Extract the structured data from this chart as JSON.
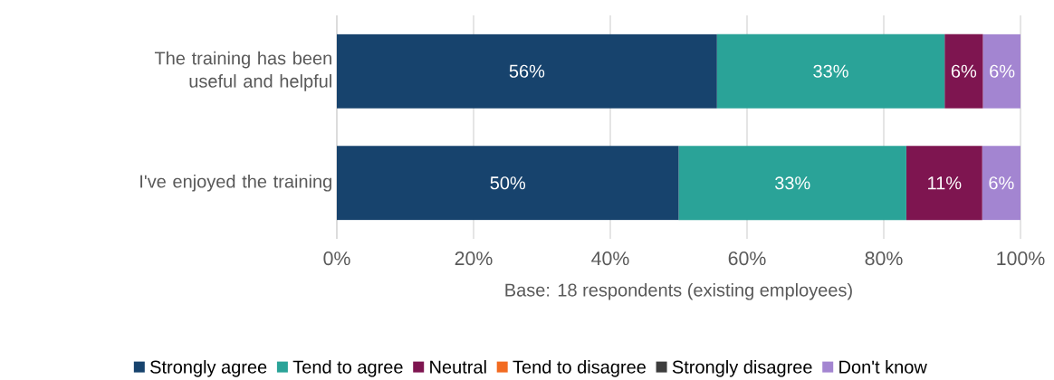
{
  "chart_data": {
    "type": "bar",
    "orientation": "horizontal",
    "stacked": true,
    "categories": [
      "The training has been useful and helpful",
      "I've enjoyed the training"
    ],
    "series": [
      {
        "name": "Strongly agree",
        "color": "#17436d",
        "values": [
          55.6,
          50
        ],
        "value_labels": [
          "56%",
          "50%"
        ]
      },
      {
        "name": "Tend to agree",
        "color": "#2aa398",
        "values": [
          33.3,
          33.3
        ],
        "value_labels": [
          "33%",
          "33%"
        ]
      },
      {
        "name": "Neutral",
        "color": "#7e1550",
        "values": [
          5.6,
          11.1
        ],
        "value_labels": [
          "6%",
          "11%"
        ]
      },
      {
        "name": "Tend to disagree",
        "color": "#f26b21",
        "values": [
          0,
          0
        ],
        "value_labels": [
          null,
          null
        ]
      },
      {
        "name": "Strongly disagree",
        "color": "#3d3d3d",
        "values": [
          0,
          0
        ],
        "value_labels": [
          null,
          null
        ]
      },
      {
        "name": "Don't know",
        "color": "#a385d1",
        "values": [
          5.6,
          5.6
        ],
        "value_labels": [
          "6%",
          "6%"
        ]
      }
    ],
    "xlim": [
      0,
      100
    ],
    "xticks": [
      {
        "value": 0,
        "label": "0%"
      },
      {
        "value": 20,
        "label": "20%"
      },
      {
        "value": 40,
        "label": "40%"
      },
      {
        "value": 60,
        "label": "60%"
      },
      {
        "value": 80,
        "label": "80%"
      },
      {
        "value": 100,
        "label": "100%"
      }
    ],
    "xlabel": "Base: 18 respondents (existing employees)",
    "grid": "x",
    "legend": "bottom"
  }
}
